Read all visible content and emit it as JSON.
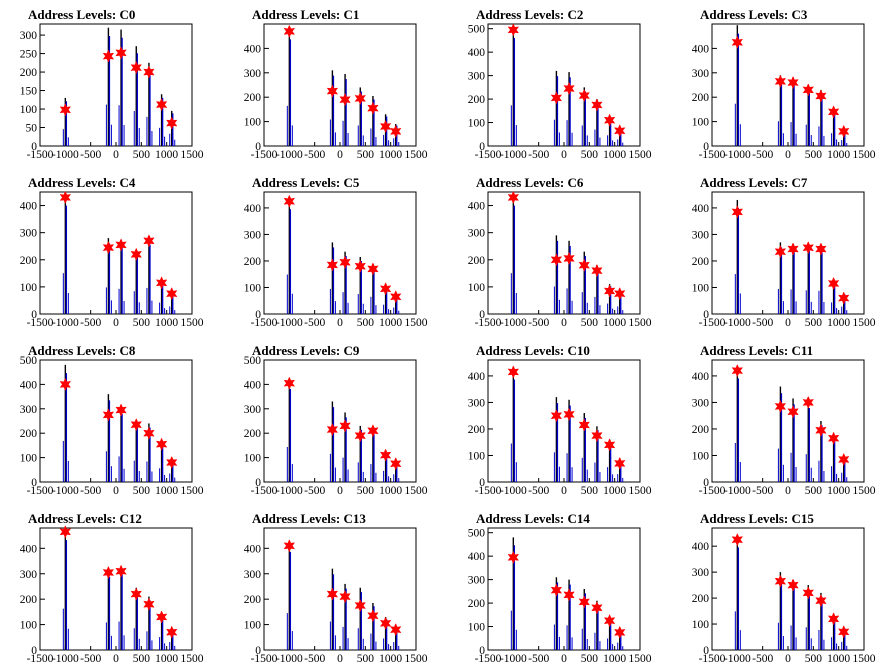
{
  "chart_data": [
    {
      "type": "bar",
      "title": "Address Levels: C0",
      "xlim": [
        -1500,
        1500
      ],
      "ylim": [
        0,
        330
      ],
      "xticks": [
        -1500,
        -1000,
        -500,
        0,
        500,
        1000,
        1500
      ],
      "yticks": [
        0,
        50,
        100,
        150,
        200,
        250,
        300
      ],
      "peaks_x": [
        -1000,
        -150,
        100,
        400,
        650,
        900,
        1100
      ],
      "peak_max": [
        130,
        320,
        315,
        270,
        225,
        140,
        95
      ],
      "markers": [
        98,
        243,
        252,
        212,
        200,
        112,
        62
      ]
    },
    {
      "type": "bar",
      "title": "Address Levels: C1",
      "xlim": [
        -1500,
        1500
      ],
      "ylim": [
        0,
        500
      ],
      "xticks": [
        -1500,
        -1000,
        -500,
        0,
        500,
        1000,
        1500
      ],
      "yticks": [
        0,
        100,
        200,
        300,
        400
      ],
      "peaks_x": [
        -1000,
        -150,
        100,
        400,
        650,
        900,
        1100
      ],
      "peak_max": [
        470,
        310,
        295,
        240,
        205,
        130,
        90
      ],
      "markers": [
        470,
        225,
        190,
        195,
        155,
        80,
        60
      ]
    },
    {
      "type": "bar",
      "title": "Address Levels: C2",
      "xlim": [
        -1500,
        1500
      ],
      "ylim": [
        0,
        520
      ],
      "xticks": [
        -1500,
        -1000,
        -500,
        0,
        500,
        1000,
        1500
      ],
      "yticks": [
        0,
        100,
        200,
        300,
        400,
        500
      ],
      "peaks_x": [
        -1000,
        -150,
        100,
        400,
        650,
        900,
        1100
      ],
      "peak_max": [
        495,
        320,
        315,
        250,
        200,
        130,
        80
      ],
      "markers": [
        495,
        205,
        245,
        215,
        175,
        110,
        65
      ]
    },
    {
      "type": "bar",
      "title": "Address Levels: C3",
      "xlim": [
        -1500,
        1500
      ],
      "ylim": [
        0,
        500
      ],
      "xticks": [
        -1500,
        -1000,
        -500,
        0,
        500,
        1000,
        1500
      ],
      "yticks": [
        0,
        100,
        200,
        300,
        400
      ],
      "peaks_x": [
        -1000,
        -150,
        100,
        400,
        650,
        900,
        1100
      ],
      "peak_max": [
        495,
        290,
        280,
        250,
        230,
        150,
        70
      ],
      "markers": [
        425,
        265,
        260,
        230,
        205,
        140,
        60
      ]
    },
    {
      "type": "bar",
      "title": "Address Levels: C4",
      "xlim": [
        -1500,
        1500
      ],
      "ylim": [
        0,
        450
      ],
      "xticks": [
        -1500,
        -1000,
        -500,
        0,
        500,
        1000,
        1500
      ],
      "yticks": [
        0,
        100,
        200,
        300,
        400
      ],
      "peaks_x": [
        -1000,
        -150,
        100,
        400,
        650,
        900,
        1100
      ],
      "peak_max": [
        430,
        280,
        265,
        240,
        275,
        120,
        80
      ],
      "markers": [
        430,
        245,
        255,
        220,
        270,
        115,
        75
      ]
    },
    {
      "type": "bar",
      "title": "Address Levels: C5",
      "xlim": [
        -1500,
        1500
      ],
      "ylim": [
        0,
        460
      ],
      "xticks": [
        -1500,
        -1000,
        -500,
        0,
        500,
        1000,
        1500
      ],
      "yticks": [
        0,
        100,
        200,
        300,
        400
      ],
      "peaks_x": [
        -1000,
        -150,
        100,
        400,
        650,
        900,
        1100
      ],
      "peak_max": [
        425,
        270,
        235,
        215,
        185,
        100,
        70
      ],
      "markers": [
        425,
        185,
        195,
        180,
        170,
        95,
        65
      ]
    },
    {
      "type": "bar",
      "title": "Address Levels: C6",
      "xlim": [
        -1500,
        1500
      ],
      "ylim": [
        0,
        450
      ],
      "xticks": [
        -1500,
        -1000,
        -500,
        0,
        500,
        1000,
        1500
      ],
      "yticks": [
        0,
        100,
        200,
        300,
        400
      ],
      "peaks_x": [
        -1000,
        -150,
        100,
        400,
        650,
        900,
        1100
      ],
      "peak_max": [
        430,
        290,
        270,
        230,
        180,
        110,
        80
      ],
      "markers": [
        430,
        200,
        205,
        180,
        160,
        85,
        75
      ]
    },
    {
      "type": "bar",
      "title": "Address Levels: C7",
      "xlim": [
        -1500,
        1500
      ],
      "ylim": [
        0,
        460
      ],
      "xticks": [
        -1500,
        -1000,
        -500,
        0,
        500,
        1000,
        1500
      ],
      "yticks": [
        0,
        100,
        200,
        300,
        400
      ],
      "peaks_x": [
        -1000,
        -150,
        100,
        400,
        650,
        900,
        1100
      ],
      "peak_max": [
        430,
        270,
        265,
        255,
        250,
        125,
        80
      ],
      "markers": [
        385,
        235,
        245,
        250,
        245,
        115,
        60
      ]
    },
    {
      "type": "bar",
      "title": "Address Levels: C8",
      "xlim": [
        -1500,
        1500
      ],
      "ylim": [
        0,
        500
      ],
      "xticks": [
        -1500,
        -1000,
        -500,
        0,
        500,
        1000,
        1500
      ],
      "yticks": [
        0,
        100,
        200,
        300,
        400,
        500
      ],
      "peaks_x": [
        -1000,
        -150,
        100,
        400,
        650,
        900,
        1100
      ],
      "peak_max": [
        480,
        360,
        300,
        250,
        240,
        160,
        100
      ],
      "markers": [
        400,
        275,
        295,
        235,
        200,
        155,
        80
      ]
    },
    {
      "type": "bar",
      "title": "Address Levels: C9",
      "xlim": [
        -1500,
        1500
      ],
      "ylim": [
        0,
        500
      ],
      "xticks": [
        -1500,
        -1000,
        -500,
        0,
        500,
        1000,
        1500
      ],
      "yticks": [
        0,
        100,
        200,
        300,
        400,
        500
      ],
      "peaks_x": [
        -1000,
        -150,
        100,
        400,
        650,
        900,
        1100
      ],
      "peak_max": [
        410,
        330,
        285,
        230,
        210,
        130,
        90
      ],
      "markers": [
        405,
        215,
        230,
        190,
        210,
        110,
        75
      ]
    },
    {
      "type": "bar",
      "title": "Address Levels: C10",
      "xlim": [
        -1500,
        1500
      ],
      "ylim": [
        0,
        460
      ],
      "xticks": [
        -1500,
        -1000,
        -500,
        0,
        500,
        1000,
        1500
      ],
      "yticks": [
        0,
        100,
        200,
        300,
        400
      ],
      "peaks_x": [
        -1000,
        -150,
        100,
        400,
        650,
        900,
        1100
      ],
      "peak_max": [
        415,
        320,
        310,
        260,
        210,
        160,
        85
      ],
      "markers": [
        415,
        250,
        255,
        215,
        175,
        140,
        70
      ]
    },
    {
      "type": "bar",
      "title": "Address Levels: C11",
      "xlim": [
        -1500,
        1500
      ],
      "ylim": [
        0,
        460
      ],
      "xticks": [
        -1500,
        -1000,
        -500,
        0,
        500,
        1000,
        1500
      ],
      "yticks": [
        0,
        100,
        200,
        300,
        400
      ],
      "peaks_x": [
        -1000,
        -150,
        100,
        400,
        650,
        900,
        1100
      ],
      "peak_max": [
        420,
        360,
        315,
        300,
        230,
        170,
        100
      ],
      "markers": [
        420,
        285,
        265,
        300,
        195,
        165,
        85
      ]
    },
    {
      "type": "bar",
      "title": "Address Levels: C12",
      "xlim": [
        -1500,
        1500
      ],
      "ylim": [
        0,
        480
      ],
      "xticks": [
        -1500,
        -1000,
        -500,
        0,
        500,
        1000,
        1500
      ],
      "yticks": [
        0,
        100,
        200,
        300,
        400
      ],
      "peaks_x": [
        -1000,
        -150,
        100,
        400,
        650,
        900,
        1100
      ],
      "peak_max": [
        465,
        310,
        320,
        245,
        210,
        145,
        90
      ],
      "markers": [
        465,
        305,
        310,
        220,
        180,
        130,
        70
      ]
    },
    {
      "type": "bar",
      "title": "Address Levels: C13",
      "xlim": [
        -1500,
        1500
      ],
      "ylim": [
        0,
        480
      ],
      "xticks": [
        -1500,
        -1000,
        -500,
        0,
        500,
        1000,
        1500
      ],
      "yticks": [
        0,
        100,
        200,
        300,
        400
      ],
      "peaks_x": [
        -1000,
        -150,
        100,
        400,
        650,
        900,
        1100
      ],
      "peak_max": [
        415,
        320,
        260,
        245,
        185,
        130,
        90
      ],
      "markers": [
        410,
        220,
        210,
        175,
        135,
        105,
        80
      ]
    },
    {
      "type": "bar",
      "title": "Address Levels: C14",
      "xlim": [
        -1500,
        1500
      ],
      "ylim": [
        0,
        520
      ],
      "xticks": [
        -1500,
        -1000,
        -500,
        0,
        500,
        1000,
        1500
      ],
      "yticks": [
        0,
        100,
        200,
        300,
        400,
        500
      ],
      "peaks_x": [
        -1000,
        -150,
        100,
        400,
        650,
        900,
        1100
      ],
      "peak_max": [
        480,
        310,
        300,
        260,
        210,
        140,
        90
      ],
      "markers": [
        395,
        255,
        235,
        205,
        180,
        125,
        75
      ]
    },
    {
      "type": "bar",
      "title": "Address Levels: C15",
      "xlim": [
        -1500,
        1500
      ],
      "ylim": [
        0,
        470
      ],
      "xticks": [
        -1500,
        -1000,
        -500,
        0,
        500,
        1000,
        1500
      ],
      "yticks": [
        0,
        100,
        200,
        300,
        400
      ],
      "peaks_x": [
        -1000,
        -150,
        100,
        400,
        650,
        900,
        1100
      ],
      "peak_max": [
        425,
        300,
        270,
        250,
        220,
        140,
        90
      ],
      "markers": [
        425,
        265,
        250,
        220,
        190,
        120,
        70
      ]
    }
  ]
}
